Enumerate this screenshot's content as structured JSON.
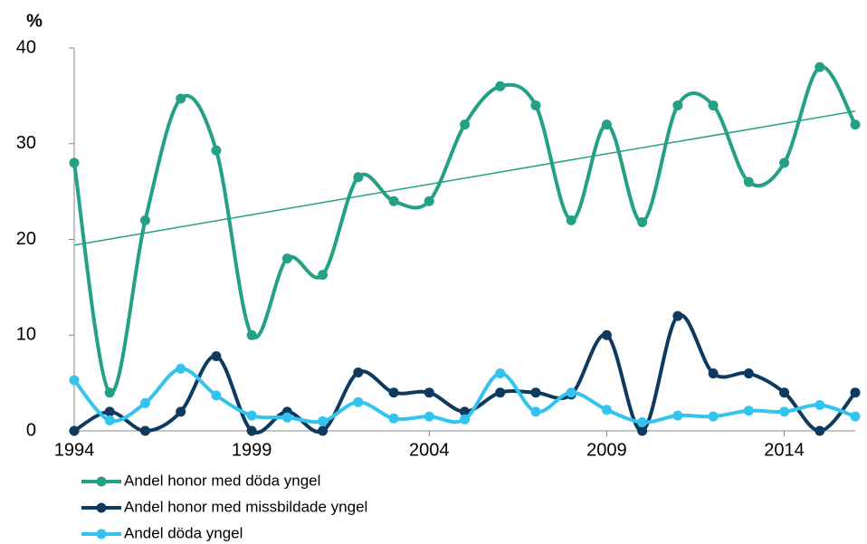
{
  "chart_data": {
    "type": "line",
    "y_unit_label": "%",
    "x": [
      1994,
      1995,
      1996,
      1997,
      1998,
      1999,
      2000,
      2001,
      2002,
      2003,
      2004,
      2005,
      2006,
      2007,
      2008,
      2009,
      2010,
      2011,
      2012,
      2013,
      2014,
      2015,
      2016
    ],
    "series": [
      {
        "name": "Andel honor med döda yngel",
        "color": "#24a085",
        "values": [
          28,
          4,
          22,
          34.7,
          29.3,
          10,
          18,
          16.3,
          26.5,
          24,
          24,
          32,
          36,
          34,
          22,
          32,
          21.8,
          34,
          34,
          26,
          28,
          38,
          32
        ]
      },
      {
        "name": "Andel honor med missbildade yngel",
        "color": "#0d3a5e",
        "values": [
          0,
          2,
          0,
          2,
          7.8,
          0,
          2,
          0,
          6.1,
          4,
          4,
          2,
          4,
          4,
          3.8,
          10,
          0,
          12,
          6,
          6,
          4,
          0,
          4
        ]
      },
      {
        "name": "Andel döda yngel",
        "color": "#33c3ef",
        "values": [
          5.3,
          1.1,
          2.9,
          6.5,
          3.7,
          1.6,
          1.4,
          1.0,
          3.0,
          1.3,
          1.5,
          1.2,
          6.0,
          2.0,
          4.0,
          2.2,
          0.9,
          1.6,
          1.5,
          2.1,
          2.0,
          2.7,
          1.5
        ]
      }
    ],
    "trendline": {
      "color": "#24a085",
      "x": [
        1994,
        2016
      ],
      "values": [
        19.4,
        33.4
      ]
    },
    "xlim": [
      1994,
      2016
    ],
    "xticks": [
      1994,
      1999,
      2004,
      2009,
      2014
    ],
    "ylim": [
      0,
      40
    ],
    "yticks": [
      0,
      10,
      20,
      30,
      40
    ],
    "grid": false,
    "smooth": true,
    "legend_position": "bottom"
  }
}
